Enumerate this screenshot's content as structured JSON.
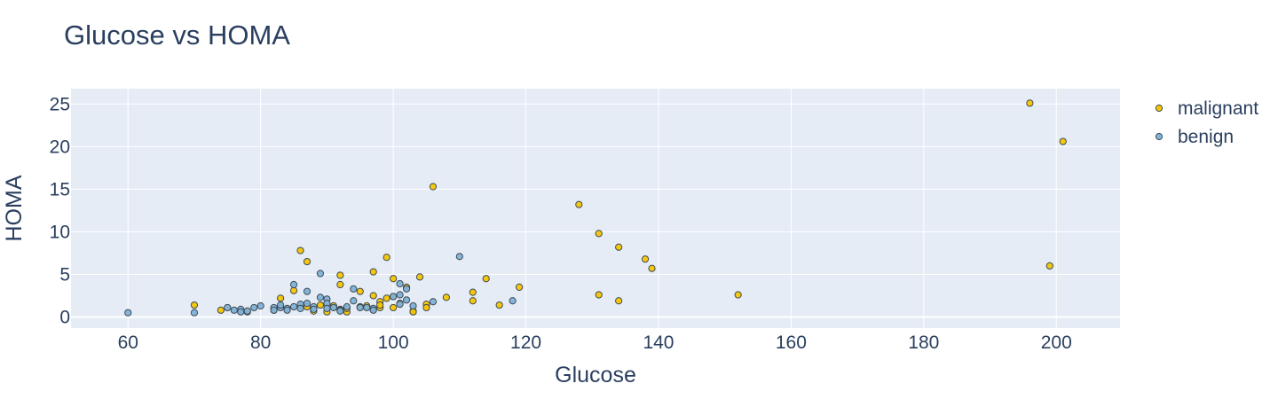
{
  "chart_data": {
    "type": "scatter",
    "title": "Glucose vs HOMA",
    "xlabel": "Glucose",
    "ylabel": "HOMA",
    "xlim": [
      51.4,
      209.6
    ],
    "ylim": [
      -1.3,
      26.8
    ],
    "xticks": [
      60,
      80,
      100,
      120,
      140,
      160,
      180,
      200
    ],
    "yticks": [
      0,
      5,
      10,
      15,
      20,
      25
    ],
    "grid": true,
    "legend": "top-right, outside plot",
    "colors": {
      "malignant": "#f5c500",
      "benign": "#7eb2d6",
      "plot_bg": "#e5ecf6",
      "grid": "#ffffff",
      "text": "#2a3f5f"
    },
    "series": [
      {
        "name": "malignant",
        "points": [
          [
            196,
            25.1
          ],
          [
            201,
            20.6
          ],
          [
            106,
            15.3
          ],
          [
            128,
            13.2
          ],
          [
            131,
            9.8
          ],
          [
            134,
            8.2
          ],
          [
            138,
            6.8
          ],
          [
            139,
            5.7
          ],
          [
            199,
            6.0
          ],
          [
            152,
            2.6
          ],
          [
            131,
            2.6
          ],
          [
            134,
            1.9
          ],
          [
            86,
            7.8
          ],
          [
            87,
            6.5
          ],
          [
            99,
            7.0
          ],
          [
            92,
            4.9
          ],
          [
            97,
            5.3
          ],
          [
            92,
            3.8
          ],
          [
            100,
            4.5
          ],
          [
            104,
            4.7
          ],
          [
            114,
            4.5
          ],
          [
            119,
            3.5
          ],
          [
            85,
            3.1
          ],
          [
            95,
            3.0
          ],
          [
            102,
            3.5
          ],
          [
            112,
            2.9
          ],
          [
            108,
            2.3
          ],
          [
            112,
            1.9
          ],
          [
            83,
            2.2
          ],
          [
            97,
            2.5
          ],
          [
            98,
            1.8
          ],
          [
            99,
            2.2
          ],
          [
            100,
            2.4
          ],
          [
            105,
            1.5
          ],
          [
            116,
            1.4
          ],
          [
            70,
            1.4
          ],
          [
            74,
            0.8
          ],
          [
            88,
            0.7
          ],
          [
            90,
            0.6
          ],
          [
            92,
            0.9
          ],
          [
            93,
            0.6
          ],
          [
            95,
            1.2
          ],
          [
            98,
            1.1
          ],
          [
            100,
            1.1
          ],
          [
            103,
            0.7
          ],
          [
            89,
            1.4
          ],
          [
            91,
            1.3
          ],
          [
            93,
            1.0
          ],
          [
            96,
            1.3
          ],
          [
            98,
            1.4
          ],
          [
            101,
            1.6
          ],
          [
            103,
            0.6
          ],
          [
            105,
            1.1
          ],
          [
            82,
            0.8
          ],
          [
            78,
            0.6
          ],
          [
            87,
            1.2
          ]
        ]
      },
      {
        "name": "benign",
        "points": [
          [
            60,
            0.5
          ],
          [
            70,
            0.5
          ],
          [
            75,
            1.1
          ],
          [
            76,
            0.8
          ],
          [
            77,
            0.9
          ],
          [
            77,
            0.6
          ],
          [
            78,
            0.7
          ],
          [
            79,
            1.1
          ],
          [
            80,
            1.3
          ],
          [
            82,
            1.1
          ],
          [
            82,
            0.8
          ],
          [
            83,
            1.1
          ],
          [
            83,
            1.4
          ],
          [
            84,
            1.0
          ],
          [
            84,
            0.8
          ],
          [
            85,
            1.2
          ],
          [
            85,
            3.8
          ],
          [
            86,
            1.5
          ],
          [
            86,
            1.0
          ],
          [
            87,
            1.6
          ],
          [
            87,
            3.0
          ],
          [
            88,
            1.2
          ],
          [
            88,
            0.9
          ],
          [
            89,
            2.3
          ],
          [
            89,
            5.1
          ],
          [
            90,
            2.1
          ],
          [
            90,
            1.6
          ],
          [
            90,
            1.0
          ],
          [
            91,
            1.1
          ],
          [
            92,
            0.8
          ],
          [
            92,
            0.7
          ],
          [
            93,
            1.2
          ],
          [
            94,
            1.9
          ],
          [
            94,
            3.3
          ],
          [
            95,
            1.1
          ],
          [
            96,
            1.1
          ],
          [
            97,
            1.0
          ],
          [
            97,
            0.8
          ],
          [
            100,
            2.4
          ],
          [
            101,
            3.9
          ],
          [
            101,
            2.6
          ],
          [
            101,
            1.5
          ],
          [
            102,
            2.0
          ],
          [
            102,
            3.3
          ],
          [
            103,
            1.3
          ],
          [
            106,
            1.8
          ],
          [
            110,
            7.1
          ],
          [
            118,
            1.9
          ]
        ]
      }
    ]
  }
}
